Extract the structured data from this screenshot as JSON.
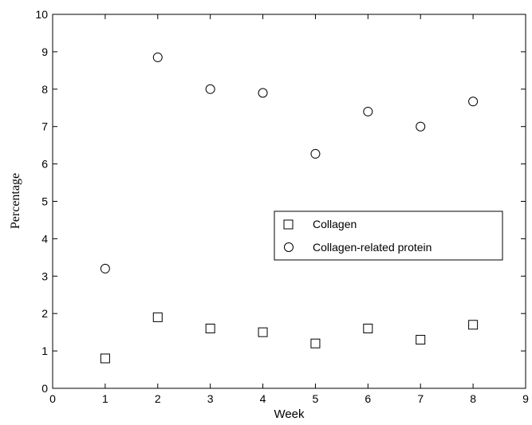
{
  "chart_data": {
    "type": "scatter",
    "title": "",
    "xlabel": "Week",
    "ylabel": "Percentage",
    "xlim": [
      0,
      9
    ],
    "ylim": [
      0,
      10
    ],
    "xticks": [
      0,
      1,
      2,
      3,
      4,
      5,
      6,
      7,
      8,
      9
    ],
    "yticks": [
      0,
      1,
      2,
      3,
      4,
      5,
      6,
      7,
      8,
      9,
      10
    ],
    "grid": false,
    "legend_position": "center-right",
    "series": [
      {
        "name": "Collagen",
        "marker": "square",
        "x": [
          1,
          2,
          3,
          4,
          5,
          6,
          7,
          8
        ],
        "y": [
          0.8,
          1.9,
          1.6,
          1.5,
          1.2,
          1.6,
          1.3,
          1.7
        ]
      },
      {
        "name": "Collagen-related protein",
        "marker": "circle",
        "x": [
          1,
          2,
          3,
          4,
          5,
          6,
          7,
          8
        ],
        "y": [
          3.2,
          8.85,
          8.0,
          7.9,
          6.27,
          7.4,
          7.0,
          7.67
        ]
      }
    ]
  }
}
